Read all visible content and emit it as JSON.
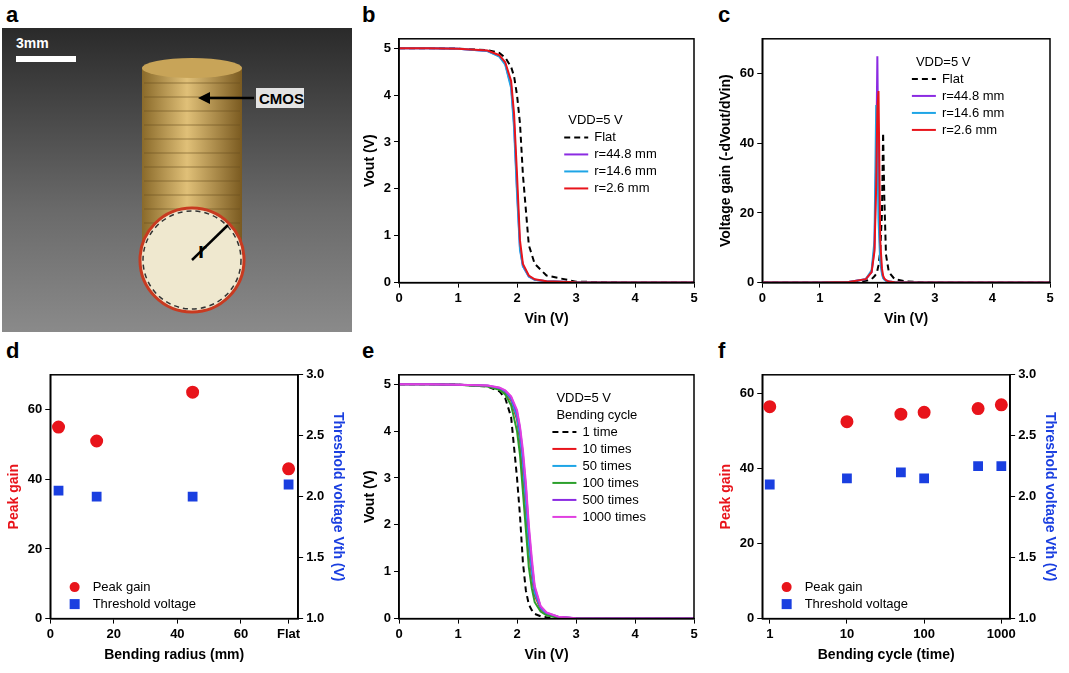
{
  "image": {
    "panel": "a",
    "scale_bar": "3mm",
    "labels": {
      "device": "CMOS",
      "radius": "r"
    }
  },
  "chart_data": [
    {
      "panel": "b",
      "type": "line",
      "x_label": "Vin (V)",
      "y_label": "Vout (V)",
      "xlim": [
        0,
        5
      ],
      "xticks": [
        0,
        1,
        2,
        3,
        4,
        5
      ],
      "ylim": [
        0,
        5.2
      ],
      "yticks": [
        0,
        1,
        2,
        3,
        4,
        5
      ],
      "grid": false,
      "legend": "right",
      "annotations": [
        "VDD=5 V"
      ],
      "x": [
        0,
        0.5,
        1,
        1.5,
        1.7,
        1.8,
        1.9,
        1.95,
        2.0,
        2.05,
        2.1,
        2.2,
        2.3,
        2.5,
        3,
        4,
        5
      ],
      "series": [
        {
          "name": "Flat",
          "color": "#000000",
          "line_style": "dashed",
          "values": [
            5,
            5,
            4.99,
            4.96,
            4.9,
            4.8,
            4.6,
            4.4,
            4.0,
            3.4,
            2.3,
            0.8,
            0.4,
            0.15,
            0.02,
            0,
            0
          ]
        },
        {
          "name": "r=44.8 mm",
          "color": "#8b2be2",
          "line_style": "solid",
          "values": [
            5,
            5,
            4.99,
            4.94,
            4.83,
            4.67,
            4.2,
            3.4,
            2.0,
            0.75,
            0.35,
            0.13,
            0.06,
            0.03,
            0.01,
            0,
            0
          ]
        },
        {
          "name": "r=14.6 mm",
          "color": "#1ea5e6",
          "line_style": "solid",
          "values": [
            5,
            5,
            4.99,
            4.94,
            4.82,
            4.65,
            4.15,
            3.3,
            1.9,
            0.7,
            0.35,
            0.13,
            0.06,
            0.03,
            0.01,
            0,
            0
          ]
        },
        {
          "name": "r=2.6 mm",
          "color": "#e8141b",
          "line_style": "solid",
          "values": [
            5,
            5,
            4.99,
            4.95,
            4.85,
            4.7,
            4.3,
            3.6,
            2.3,
            0.9,
            0.4,
            0.15,
            0.07,
            0.03,
            0.01,
            0,
            0
          ]
        }
      ]
    },
    {
      "panel": "c",
      "type": "line",
      "x_label": "Vin (V)",
      "y_label": "Voltage gain (-dVout/dVin)",
      "xlim": [
        0,
        5
      ],
      "xticks": [
        0,
        1,
        2,
        3,
        4,
        5
      ],
      "ylim": [
        0,
        70
      ],
      "yticks": [
        0,
        20,
        40,
        60
      ],
      "grid": false,
      "legend": "upper right",
      "annotations": [
        "VDD=5 V"
      ],
      "x": [
        0,
        1,
        1.5,
        1.8,
        1.9,
        1.95,
        1.98,
        2.0,
        2.02,
        2.05,
        2.08,
        2.1,
        2.12,
        2.15,
        2.2,
        2.3,
        2.5,
        3,
        4,
        5
      ],
      "series": [
        {
          "name": "Flat",
          "color": "#000000",
          "line_style": "dashed",
          "values": [
            0,
            0,
            0.1,
            0.5,
            1,
            1.8,
            2.5,
            3.5,
            5,
            9,
            20,
            43,
            25,
            8,
            3,
            1,
            0.3,
            0,
            0,
            0
          ]
        },
        {
          "name": "r=44.8 mm",
          "color": "#8b2be2",
          "line_style": "solid",
          "values": [
            0,
            0,
            0.2,
            1,
            3,
            10,
            35,
            65,
            30,
            8,
            3,
            1.5,
            1,
            0.6,
            0.3,
            0.1,
            0.05,
            0,
            0,
            0
          ]
        },
        {
          "name": "r=14.6 mm",
          "color": "#1ea5e6",
          "line_style": "solid",
          "values": [
            0,
            0,
            0.2,
            1,
            3.5,
            12,
            51,
            38,
            18,
            6,
            2.5,
            1.3,
            0.9,
            0.5,
            0.3,
            0.1,
            0.05,
            0,
            0,
            0
          ]
        },
        {
          "name": "r=2.6 mm",
          "color": "#e8141b",
          "line_style": "solid",
          "values": [
            0,
            0,
            0.2,
            1,
            3,
            9,
            28,
            50,
            55,
            12,
            4,
            2,
            1.2,
            0.7,
            0.3,
            0.1,
            0.05,
            0,
            0,
            0
          ]
        }
      ]
    },
    {
      "panel": "d",
      "type": "scatter",
      "x_label": "Bending radius (mm)",
      "y_label": "Peak gain",
      "y2_label": "Threshold voltage Vth (V)",
      "xlim": [
        0,
        78
      ],
      "xticks": [
        0,
        20,
        40,
        60,
        {
          "value": 75,
          "label": "Flat"
        }
      ],
      "ylim": [
        0,
        70
      ],
      "yticks": [
        0,
        20,
        40,
        60
      ],
      "y2lim": [
        1,
        3
      ],
      "y2ticks": [
        {
          "value": 1,
          "label": "1.0"
        },
        1.5,
        {
          "value": 2,
          "label": "2.0"
        },
        2.5,
        {
          "value": 3,
          "label": "3.0"
        }
      ],
      "grid": false,
      "legend": "lower left",
      "x": [
        2.6,
        14.6,
        44.8,
        75
      ],
      "series": [
        {
          "name": "Peak gain",
          "color": "#e8141b",
          "marker": "circle",
          "values": [
            55,
            51,
            65,
            43
          ]
        },
        {
          "name": "Threshold voltage",
          "color": "#1a3fe0",
          "marker": "square",
          "axis": "y2",
          "values": [
            2.05,
            2.0,
            2.0,
            2.1
          ]
        }
      ]
    },
    {
      "panel": "e",
      "type": "line",
      "x_label": "Vin (V)",
      "y_label": "Vout (V)",
      "xlim": [
        0,
        5
      ],
      "xticks": [
        0,
        1,
        2,
        3,
        4,
        5
      ],
      "ylim": [
        0,
        5.2
      ],
      "yticks": [
        0,
        1,
        2,
        3,
        4,
        5
      ],
      "grid": false,
      "legend": "upper right",
      "annotations": [
        "VDD=5 V",
        "Bending cycle"
      ],
      "x": [
        0,
        0.5,
        1,
        1.5,
        1.7,
        1.8,
        1.9,
        2.0,
        2.05,
        2.1,
        2.15,
        2.2,
        2.25,
        2.3,
        2.4,
        2.5,
        2.7,
        3,
        4,
        5
      ],
      "series": [
        {
          "name": "1 time",
          "color": "#000000",
          "line_style": "dashed",
          "values": [
            5,
            5,
            4.99,
            4.95,
            4.85,
            4.7,
            4.3,
            3.0,
            2.2,
            1.2,
            0.6,
            0.3,
            0.18,
            0.1,
            0.05,
            0.03,
            0.01,
            0,
            0,
            0
          ]
        },
        {
          "name": "10 times",
          "color": "#e8141b",
          "line_style": "solid",
          "values": [
            5,
            5,
            4.99,
            4.96,
            4.9,
            4.82,
            4.65,
            4.25,
            3.8,
            3.1,
            2.3,
            1.5,
            0.9,
            0.5,
            0.2,
            0.1,
            0.03,
            0.01,
            0,
            0
          ]
        },
        {
          "name": "50 times",
          "color": "#1ea5e6",
          "line_style": "solid",
          "values": [
            5,
            5,
            4.99,
            4.96,
            4.91,
            4.84,
            4.68,
            4.3,
            3.9,
            3.3,
            2.5,
            1.6,
            1.0,
            0.55,
            0.22,
            0.1,
            0.03,
            0.01,
            0,
            0
          ]
        },
        {
          "name": "100 times",
          "color": "#2ca02c",
          "line_style": "solid",
          "values": [
            5,
            5,
            4.99,
            4.95,
            4.88,
            4.78,
            4.55,
            4.0,
            3.5,
            2.7,
            1.9,
            1.1,
            0.65,
            0.35,
            0.15,
            0.07,
            0.02,
            0.01,
            0,
            0
          ]
        },
        {
          "name": "500 times",
          "color": "#8b2be2",
          "line_style": "solid",
          "values": [
            5,
            5,
            4.99,
            4.97,
            4.92,
            4.86,
            4.72,
            4.4,
            4.05,
            3.5,
            2.8,
            1.9,
            1.2,
            0.65,
            0.25,
            0.12,
            0.04,
            0.01,
            0,
            0
          ]
        },
        {
          "name": "1000 times",
          "color": "#e040e0",
          "line_style": "solid",
          "values": [
            5,
            5,
            4.99,
            4.97,
            4.93,
            4.87,
            4.74,
            4.45,
            4.1,
            3.6,
            2.9,
            2.0,
            1.3,
            0.7,
            0.27,
            0.13,
            0.04,
            0.01,
            0,
            0
          ]
        }
      ]
    },
    {
      "panel": "f",
      "type": "scatter",
      "x_label": "Bending cycle (time)",
      "y_label": "Peak gain",
      "y2_label": "Threshold voltage Vth (V)",
      "log": "x",
      "xlim": [
        0.8,
        1300
      ],
      "xticks": [
        1,
        10,
        100,
        1000
      ],
      "ylim": [
        0,
        65
      ],
      "yticks": [
        0,
        20,
        40,
        60
      ],
      "y2lim": [
        1,
        3
      ],
      "y2ticks": [
        {
          "value": 1,
          "label": "1.0"
        },
        1.5,
        {
          "value": 2,
          "label": "2.0"
        },
        2.5,
        {
          "value": 3,
          "label": "3.0"
        }
      ],
      "grid": false,
      "legend": "lower left",
      "x": [
        1,
        10,
        50,
        100,
        500,
        1000
      ],
      "series": [
        {
          "name": "Peak gain",
          "color": "#e8141b",
          "marker": "circle",
          "values": [
            56.5,
            52.5,
            54.5,
            55,
            56,
            57
          ]
        },
        {
          "name": "Threshold voltage",
          "color": "#1a3fe0",
          "marker": "square",
          "axis": "y2",
          "values": [
            2.1,
            2.15,
            2.2,
            2.15,
            2.25,
            2.25
          ]
        }
      ]
    }
  ]
}
